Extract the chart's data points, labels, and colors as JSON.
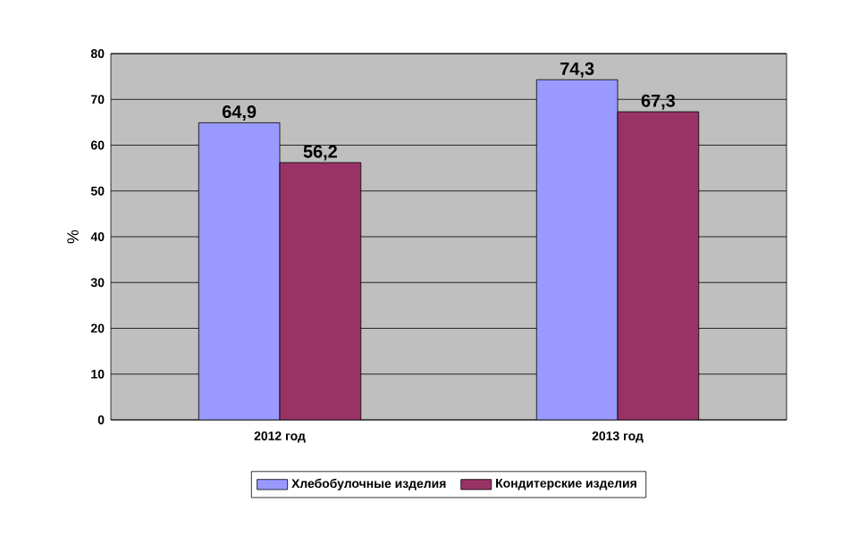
{
  "chart_data": {
    "type": "bar",
    "categories": [
      "2012 год",
      "2013 год"
    ],
    "ylabel": "%",
    "ylim": [
      0,
      80
    ],
    "yticks": [
      0,
      10,
      20,
      30,
      40,
      50,
      60,
      70,
      80
    ],
    "grid": "y",
    "legend": "bottom",
    "series": [
      {
        "name": "Хлебобулочные изделия",
        "color": "#9999ff",
        "values": [
          64.9,
          74.3
        ],
        "value_labels": [
          "64,9",
          "74,3"
        ]
      },
      {
        "name": "Кондитерские изделия",
        "color": "#993366",
        "values": [
          56.2,
          67.3
        ],
        "value_labels": [
          "56,2",
          "67,3"
        ]
      }
    ]
  }
}
